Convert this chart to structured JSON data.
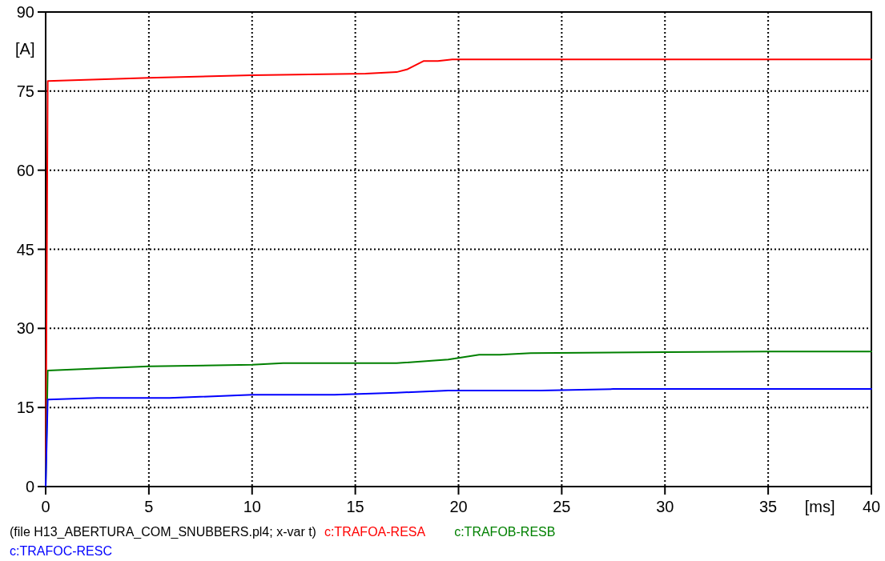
{
  "chart_data": {
    "type": "line",
    "xlabel": "[ms]",
    "ylabel": "[A]",
    "xlim": [
      0,
      40
    ],
    "ylim": [
      0,
      90
    ],
    "xticks": [
      0,
      5,
      10,
      15,
      20,
      25,
      30,
      35,
      40
    ],
    "yticks": [
      0,
      15,
      30,
      45,
      60,
      75,
      90
    ],
    "grid": true,
    "legend": "bottom",
    "line_style": "solid",
    "marker": "none",
    "annotations": [
      "(file H13_ABERTURA_COM_SNUBBERS.pl4; x-var t)"
    ],
    "series": [
      {
        "name": "c:TRAFOA-RESA",
        "color": "#ff0000",
        "x": [
          0,
          0.1,
          5,
          10,
          15.5,
          17,
          17.5,
          18.3,
          19,
          19.7,
          40
        ],
        "values": [
          0,
          76.9,
          77.5,
          78.0,
          78.3,
          78.6,
          79.1,
          80.7,
          80.7,
          81.0,
          81.0
        ]
      },
      {
        "name": "c:TRAFOB-RESB",
        "color": "#008000",
        "x": [
          0,
          0.1,
          5,
          10,
          11.5,
          17,
          19.5,
          20.5,
          21,
          22,
          23.5,
          30,
          35,
          40
        ],
        "values": [
          0,
          22.0,
          22.8,
          23.1,
          23.4,
          23.4,
          24.1,
          24.7,
          25.0,
          25.0,
          25.3,
          25.5,
          25.6,
          25.6
        ]
      },
      {
        "name": "c:TRAFOC-RESC",
        "color": "#0000ff",
        "x": [
          0,
          0.1,
          2.5,
          6,
          10,
          14,
          17,
          19.5,
          24,
          27.5,
          40
        ],
        "values": [
          0,
          16.5,
          16.8,
          16.8,
          17.4,
          17.4,
          17.8,
          18.2,
          18.2,
          18.5,
          18.5
        ]
      }
    ]
  }
}
